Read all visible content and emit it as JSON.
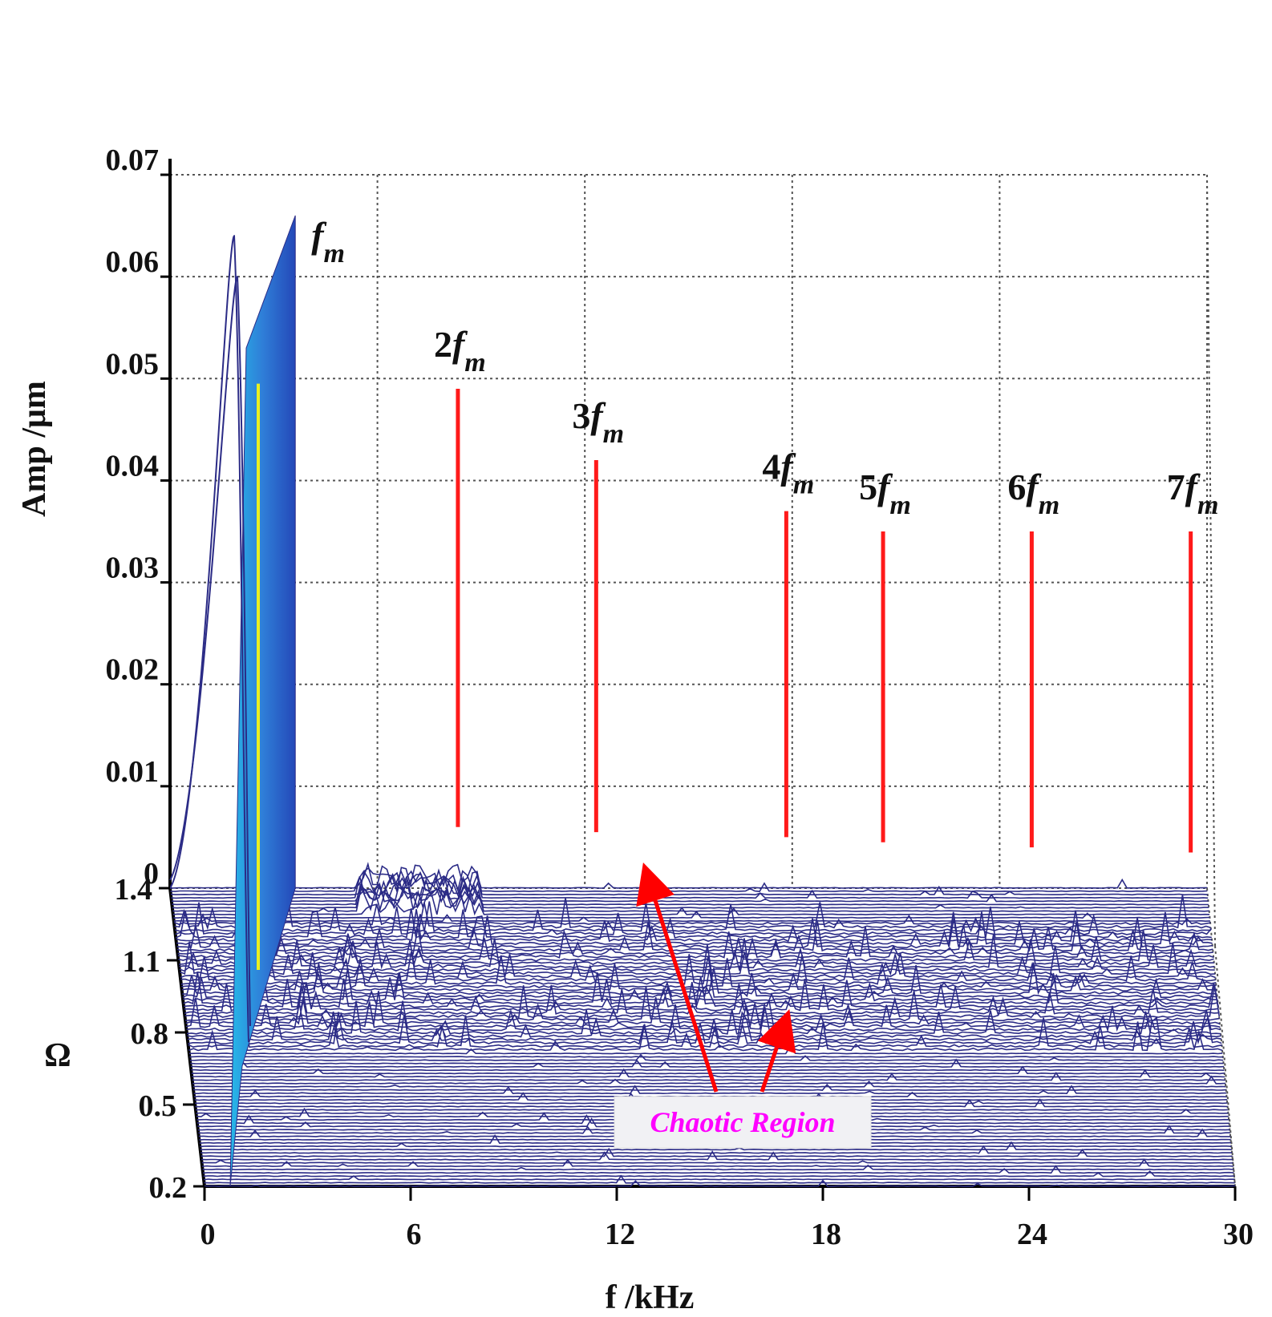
{
  "chart_data": {
    "type": "waterfall",
    "x_axis": {
      "label": "f /kHz",
      "ticks": [
        "0",
        "6",
        "12",
        "18",
        "24",
        "30"
      ],
      "range": [
        0,
        30
      ]
    },
    "y_axis": {
      "label": "Amp /μm",
      "ticks": [
        "0",
        "0.01",
        "0.02",
        "0.03",
        "0.04",
        "0.05",
        "0.06",
        "0.07"
      ],
      "range": [
        0,
        0.07
      ]
    },
    "depth_axis": {
      "label": "Ω",
      "ticks": [
        "0.2",
        "0.5",
        "0.8",
        "1.1",
        "1.4"
      ],
      "range": [
        0.2,
        1.4
      ]
    },
    "grid": true,
    "harmonics": [
      {
        "base": "",
        "sub": "m",
        "prefix": "f",
        "freq_khz": 2.0,
        "amp": 0.066
      },
      {
        "base": "2",
        "sub": "m",
        "prefix": "f",
        "freq_khz": 7.4,
        "amp": 0.049
      },
      {
        "base": "3",
        "sub": "m",
        "prefix": "f",
        "freq_khz": 11.4,
        "amp": 0.042
      },
      {
        "base": "4",
        "sub": "m",
        "prefix": "f",
        "freq_khz": 16.9,
        "amp": 0.037
      },
      {
        "base": "5",
        "sub": "m",
        "prefix": "f",
        "freq_khz": 19.7,
        "amp": 0.035
      },
      {
        "base": "6",
        "sub": "m",
        "prefix": "f",
        "freq_khz": 24.0,
        "amp": 0.035
      },
      {
        "base": "7",
        "sub": "m",
        "prefix": "f",
        "freq_khz": 28.6,
        "amp": 0.035
      }
    ],
    "annotation": {
      "text": "Chaotic Region"
    },
    "colors": {
      "trace": "#2b2b86",
      "harmonic_marker": "#ff1a1a",
      "fm_surface": "#2f6fd6",
      "fm_highlight": "#e8f020",
      "annotation_text": "#ff00ff",
      "arrow": "#ff0000"
    }
  }
}
